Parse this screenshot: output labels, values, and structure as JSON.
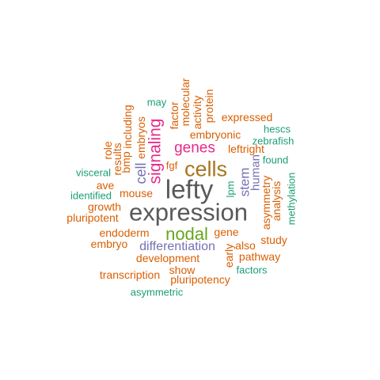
{
  "palette": {
    "dark_gray": "#595959",
    "olive": "#a6761d",
    "green": "#66a61e",
    "magenta": "#e7298a",
    "purple": "#7570b3",
    "orange": "#d95f02",
    "teal": "#1b9e77"
  },
  "words": [
    {
      "text": "expression",
      "color": "#595959"
    },
    {
      "text": "lefty",
      "color": "#595959"
    },
    {
      "text": "cells",
      "color": "#a6761d"
    },
    {
      "text": "nodal",
      "color": "#66a61e"
    },
    {
      "text": "signaling",
      "color": "#e7298a"
    },
    {
      "text": "genes",
      "color": "#e7298a"
    },
    {
      "text": "differentiation",
      "color": "#7570b3"
    },
    {
      "text": "cell",
      "color": "#7570b3"
    },
    {
      "text": "stem",
      "color": "#7570b3"
    },
    {
      "text": "human",
      "color": "#7570b3"
    },
    {
      "text": "development",
      "color": "#d95f02"
    },
    {
      "text": "embryonic",
      "color": "#d95f02"
    },
    {
      "text": "mouse",
      "color": "#d95f02"
    },
    {
      "text": "gene",
      "color": "#d95f02"
    },
    {
      "text": "leftright",
      "color": "#d95f02"
    },
    {
      "text": "expressed",
      "color": "#d95f02"
    },
    {
      "text": "embryos",
      "color": "#d95f02"
    },
    {
      "text": "endoderm",
      "color": "#d95f02"
    },
    {
      "text": "pluripotent",
      "color": "#d95f02"
    },
    {
      "text": "embryo",
      "color": "#d95f02"
    },
    {
      "text": "growth",
      "color": "#d95f02"
    },
    {
      "text": "ave",
      "color": "#d95f02"
    },
    {
      "text": "bmp",
      "color": "#d95f02"
    },
    {
      "text": "including",
      "color": "#d95f02"
    },
    {
      "text": "results",
      "color": "#d95f02"
    },
    {
      "text": "role",
      "color": "#d95f02"
    },
    {
      "text": "factor",
      "color": "#d95f02"
    },
    {
      "text": "molecular",
      "color": "#d95f02"
    },
    {
      "text": "activity",
      "color": "#d95f02"
    },
    {
      "text": "protein",
      "color": "#d95f02"
    },
    {
      "text": "fgf",
      "color": "#d95f02"
    },
    {
      "text": "asymmetry",
      "color": "#d95f02"
    },
    {
      "text": "analysis",
      "color": "#d95f02"
    },
    {
      "text": "early",
      "color": "#d95f02"
    },
    {
      "text": "also",
      "color": "#d95f02"
    },
    {
      "text": "study",
      "color": "#d95f02"
    },
    {
      "text": "pathway",
      "color": "#d95f02"
    },
    {
      "text": "show",
      "color": "#d95f02"
    },
    {
      "text": "pluripotency",
      "color": "#d95f02"
    },
    {
      "text": "transcription",
      "color": "#d95f02"
    },
    {
      "text": "may",
      "color": "#1b9e77"
    },
    {
      "text": "hescs",
      "color": "#1b9e77"
    },
    {
      "text": "zebrafish",
      "color": "#1b9e77"
    },
    {
      "text": "found",
      "color": "#1b9e77"
    },
    {
      "text": "methylation",
      "color": "#1b9e77"
    },
    {
      "text": "visceral",
      "color": "#1b9e77"
    },
    {
      "text": "identified",
      "color": "#1b9e77"
    },
    {
      "text": "lpm",
      "color": "#1b9e77"
    },
    {
      "text": "factors",
      "color": "#1b9e77"
    },
    {
      "text": "asymmetric",
      "color": "#1b9e77"
    }
  ]
}
